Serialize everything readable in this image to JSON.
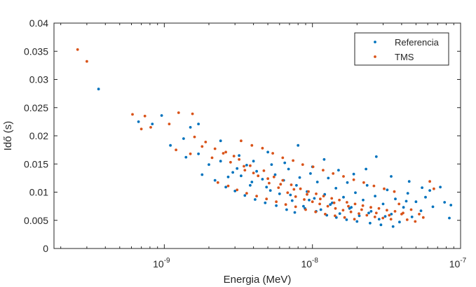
{
  "chart_data": {
    "type": "scatter",
    "xlabel": "Energia (MeV)",
    "ylabel": "Idő (s)",
    "x_scale": "log",
    "xlim": [
      1.8e-10,
      1e-07
    ],
    "ylim": [
      0,
      0.04
    ],
    "x_ticks": [
      1e-09,
      1e-08,
      1e-07
    ],
    "x_tick_labels": [
      {
        "base": "10",
        "exp": "-9"
      },
      {
        "base": "10",
        "exp": "-8"
      },
      {
        "base": "10",
        "exp": "-7"
      }
    ],
    "y_ticks": [
      0,
      0.005,
      0.01,
      0.015,
      0.02,
      0.025,
      0.03,
      0.035,
      0.04
    ],
    "y_tick_labels": [
      "0",
      "0.005",
      "0.01",
      "0.015",
      "0.02",
      "0.025",
      "0.03",
      "0.035",
      "0.04"
    ],
    "grid": false,
    "legend_position": "top-right",
    "series": [
      {
        "name": "Referencia",
        "color": "#0072BD",
        "points": [
          [
            3.6e-10,
            0.0283
          ],
          [
            6.7e-10,
            0.0225
          ],
          [
            8.3e-10,
            0.0221
          ],
          [
            9.6e-10,
            0.0236
          ],
          [
            1.1e-09,
            0.0183
          ],
          [
            1.35e-09,
            0.0195
          ],
          [
            1.5e-09,
            0.0215
          ],
          [
            1.7e-09,
            0.0221
          ],
          [
            2.4e-09,
            0.0191
          ],
          [
            1.4e-09,
            0.0162
          ],
          [
            1.7e-09,
            0.0168
          ],
          [
            2e-09,
            0.0149
          ],
          [
            2.4e-09,
            0.0155
          ],
          [
            2.9e-09,
            0.0135
          ],
          [
            3.1e-09,
            0.0142
          ],
          [
            3.3e-09,
            0.0129
          ],
          [
            3.6e-09,
            0.0148
          ],
          [
            3.9e-09,
            0.0118
          ],
          [
            4.2e-09,
            0.0137
          ],
          [
            4.6e-09,
            0.0123
          ],
          [
            4.9e-09,
            0.0109
          ],
          [
            5.3e-09,
            0.0149
          ],
          [
            5.6e-09,
            0.0131
          ],
          [
            6e-09,
            0.0097
          ],
          [
            6.4e-09,
            0.0121
          ],
          [
            6.9e-09,
            0.0141
          ],
          [
            7.3e-09,
            0.0085
          ],
          [
            7.8e-09,
            0.0112
          ],
          [
            8.2e-09,
            0.0126
          ],
          [
            8.7e-09,
            0.0075
          ],
          [
            9.2e-09,
            0.0101
          ],
          [
            9.7e-09,
            0.0133
          ],
          [
            1.03e-08,
            0.0089
          ],
          [
            1.08e-08,
            0.0118
          ],
          [
            1.14e-08,
            0.0069
          ],
          [
            1.21e-08,
            0.0096
          ],
          [
            1.28e-08,
            0.0125
          ],
          [
            1.36e-08,
            0.0081
          ],
          [
            1.44e-08,
            0.0107
          ],
          [
            1.53e-08,
            0.0062
          ],
          [
            1.62e-08,
            0.0091
          ],
          [
            1.72e-08,
            0.0117
          ],
          [
            1.83e-08,
            0.0073
          ],
          [
            1.95e-08,
            0.0099
          ],
          [
            2.07e-08,
            0.0058
          ],
          [
            2.2e-08,
            0.0086
          ],
          [
            2.34e-08,
            0.0112
          ],
          [
            2.49e-08,
            0.0066
          ],
          [
            2.65e-08,
            0.0093
          ],
          [
            2.82e-08,
            0.0052
          ],
          [
            3e-08,
            0.0079
          ],
          [
            3.2e-08,
            0.0104
          ],
          [
            3.41e-08,
            0.0061
          ],
          [
            3.63e-08,
            0.0088
          ],
          [
            3.87e-08,
            0.0047
          ],
          [
            4.12e-08,
            0.0073
          ],
          [
            4.4e-08,
            0.0098
          ],
          [
            4.7e-08,
            0.0056
          ],
          [
            5e-08,
            0.0083
          ],
          [
            5.4e-08,
            0.0067
          ],
          [
            5.8e-08,
            0.0091
          ],
          [
            6.5e-08,
            0.0074
          ],
          [
            7.8e-08,
            0.0082
          ],
          [
            8.6e-08,
            0.0077
          ],
          [
            8.4e-08,
            0.0054
          ],
          [
            3.2e-09,
            0.0165
          ],
          [
            4e-09,
            0.0155
          ],
          [
            5e-09,
            0.0171
          ],
          [
            6.5e-09,
            0.0152
          ],
          [
            8e-09,
            0.0183
          ],
          [
            1e-08,
            0.0145
          ],
          [
            1.2e-08,
            0.0158
          ],
          [
            1.5e-08,
            0.0139
          ],
          [
            1.9e-08,
            0.0132
          ],
          [
            2.3e-08,
            0.0141
          ],
          [
            2.7e-08,
            0.0163
          ],
          [
            3.4e-08,
            0.0128
          ],
          [
            4.5e-08,
            0.0119
          ],
          [
            5.5e-08,
            0.0108
          ],
          [
            2.2e-09,
            0.0121
          ],
          [
            2.6e-09,
            0.0109
          ],
          [
            3e-09,
            0.0102
          ],
          [
            3.5e-09,
            0.0094
          ],
          [
            4.1e-09,
            0.0087
          ],
          [
            4.8e-09,
            0.0081
          ],
          [
            5.7e-09,
            0.0076
          ],
          [
            6.7e-09,
            0.0069
          ],
          [
            7.6e-09,
            0.0064
          ],
          [
            8.9e-09,
            0.0071
          ],
          [
            1.06e-08,
            0.0066
          ],
          [
            1.25e-08,
            0.0059
          ],
          [
            1.45e-08,
            0.0055
          ],
          [
            1.7e-08,
            0.0051
          ],
          [
            2e-08,
            0.0048
          ],
          [
            2.45e-08,
            0.0045
          ],
          [
            2.9e-08,
            0.0042
          ],
          [
            3.5e-08,
            0.0039
          ],
          [
            1.8e-09,
            0.0131
          ],
          [
            2.7e-09,
            0.0127
          ],
          [
            3.8e-09,
            0.0112
          ],
          [
            5.2e-09,
            0.0103
          ],
          [
            7.1e-09,
            0.0095
          ],
          [
            9.5e-09,
            0.0086
          ],
          [
            1.32e-08,
            0.0078
          ],
          [
            1.78e-08,
            0.0071
          ],
          [
            2.4e-08,
            0.0063
          ],
          [
            3.1e-08,
            0.0057
          ],
          [
            4.3e-08,
            0.0084
          ],
          [
            6.2e-08,
            0.0103
          ],
          [
            7.3e-08,
            0.0109
          ]
        ]
      },
      {
        "name": "TMS",
        "color": "#D95319",
        "points": [
          [
            2.6e-10,
            0.0353
          ],
          [
            3e-10,
            0.0332
          ],
          [
            6.1e-10,
            0.0238
          ],
          [
            7e-10,
            0.0212
          ],
          [
            7.4e-10,
            0.0235
          ],
          [
            8.1e-10,
            0.0215
          ],
          [
            1.08e-09,
            0.0221
          ],
          [
            1.25e-09,
            0.0241
          ],
          [
            1.55e-09,
            0.0239
          ],
          [
            1.2e-09,
            0.0175
          ],
          [
            1.5e-09,
            0.0168
          ],
          [
            1.8e-09,
            0.0181
          ],
          [
            2.1e-09,
            0.0161
          ],
          [
            2.5e-09,
            0.0169
          ],
          [
            2.8e-09,
            0.0153
          ],
          [
            3.2e-09,
            0.0158
          ],
          [
            3.5e-09,
            0.0139
          ],
          [
            3.8e-09,
            0.0147
          ],
          [
            4.3e-09,
            0.0129
          ],
          [
            4.7e-09,
            0.0138
          ],
          [
            5.1e-09,
            0.0116
          ],
          [
            5.5e-09,
            0.0127
          ],
          [
            5.9e-09,
            0.0108
          ],
          [
            6.3e-09,
            0.0121
          ],
          [
            6.8e-09,
            0.0099
          ],
          [
            7.2e-09,
            0.0113
          ],
          [
            7.7e-09,
            0.0092
          ],
          [
            8.3e-09,
            0.0106
          ],
          [
            8.8e-09,
            0.0087
          ],
          [
            9.4e-09,
            0.0101
          ],
          [
            1e-08,
            0.0083
          ],
          [
            1.06e-08,
            0.0097
          ],
          [
            1.12e-08,
            0.0079
          ],
          [
            1.19e-08,
            0.0093
          ],
          [
            1.27e-08,
            0.0075
          ],
          [
            1.35e-08,
            0.0089
          ],
          [
            1.43e-08,
            0.0071
          ],
          [
            1.52e-08,
            0.0086
          ],
          [
            1.61e-08,
            0.0068
          ],
          [
            1.71e-08,
            0.0082
          ],
          [
            1.82e-08,
            0.0065
          ],
          [
            1.94e-08,
            0.0079
          ],
          [
            2.06e-08,
            0.0062
          ],
          [
            2.19e-08,
            0.0076
          ],
          [
            2.33e-08,
            0.0059
          ],
          [
            2.48e-08,
            0.0073
          ],
          [
            2.64e-08,
            0.0056
          ],
          [
            2.81e-08,
            0.0071
          ],
          [
            2.99e-08,
            0.0054
          ],
          [
            3.18e-08,
            0.0068
          ],
          [
            3.39e-08,
            0.0052
          ],
          [
            3.61e-08,
            0.0066
          ],
          [
            3.84e-08,
            0.0079
          ],
          [
            4.09e-08,
            0.0063
          ],
          [
            4.36e-08,
            0.0051
          ],
          [
            4.64e-08,
            0.0069
          ],
          [
            4.94e-08,
            0.0048
          ],
          [
            5.26e-08,
            0.0061
          ],
          [
            5.6e-08,
            0.0055
          ],
          [
            6.2e-08,
            0.0119
          ],
          [
            6.6e-08,
            0.0106
          ],
          [
            3.3e-09,
            0.0191
          ],
          [
            3.9e-09,
            0.0183
          ],
          [
            4.6e-09,
            0.0178
          ],
          [
            5.4e-09,
            0.0169
          ],
          [
            6.3e-09,
            0.0161
          ],
          [
            7.4e-09,
            0.0156
          ],
          [
            8.6e-09,
            0.0149
          ],
          [
            1.01e-08,
            0.0145
          ],
          [
            1.18e-08,
            0.0139
          ],
          [
            1.38e-08,
            0.0133
          ],
          [
            1.62e-08,
            0.0128
          ],
          [
            1.9e-08,
            0.0122
          ],
          [
            2.22e-08,
            0.0117
          ],
          [
            2.6e-08,
            0.0111
          ],
          [
            3.05e-08,
            0.0106
          ],
          [
            3.57e-08,
            0.0101
          ],
          [
            2.3e-09,
            0.0117
          ],
          [
            2.7e-09,
            0.0111
          ],
          [
            3.1e-09,
            0.0104
          ],
          [
            3.6e-09,
            0.0098
          ],
          [
            4.2e-09,
            0.0093
          ],
          [
            4.9e-09,
            0.0088
          ],
          [
            5.7e-09,
            0.0083
          ],
          [
            6.6e-09,
            0.0078
          ],
          [
            7.7e-09,
            0.0074
          ],
          [
            9e-09,
            0.0069
          ],
          [
            1.05e-08,
            0.0065
          ],
          [
            1.22e-08,
            0.0061
          ],
          [
            1.42e-08,
            0.0058
          ],
          [
            1.65e-08,
            0.0055
          ],
          [
            1.92e-08,
            0.0052
          ],
          [
            1.6e-09,
            0.0198
          ],
          [
            1.9e-09,
            0.0189
          ],
          [
            2.2e-09,
            0.0177
          ],
          [
            2.6e-09,
            0.0171
          ],
          [
            2.95e-09,
            0.0164
          ],
          [
            3.45e-09,
            0.0146
          ],
          [
            4e-09,
            0.0134
          ],
          [
            5e-09,
            0.0124
          ],
          [
            6.1e-09,
            0.0114
          ],
          [
            7.5e-09,
            0.0105
          ],
          [
            9.2e-09,
            0.0096
          ],
          [
            1.13e-08,
            0.0088
          ],
          [
            1.4e-08,
            0.0081
          ],
          [
            1.75e-08,
            0.0075
          ],
          [
            2.15e-08,
            0.0069
          ],
          [
            2.7e-08,
            0.0063
          ],
          [
            3.3e-08,
            0.0059
          ],
          [
            4e-08,
            0.0061
          ]
        ]
      }
    ]
  }
}
